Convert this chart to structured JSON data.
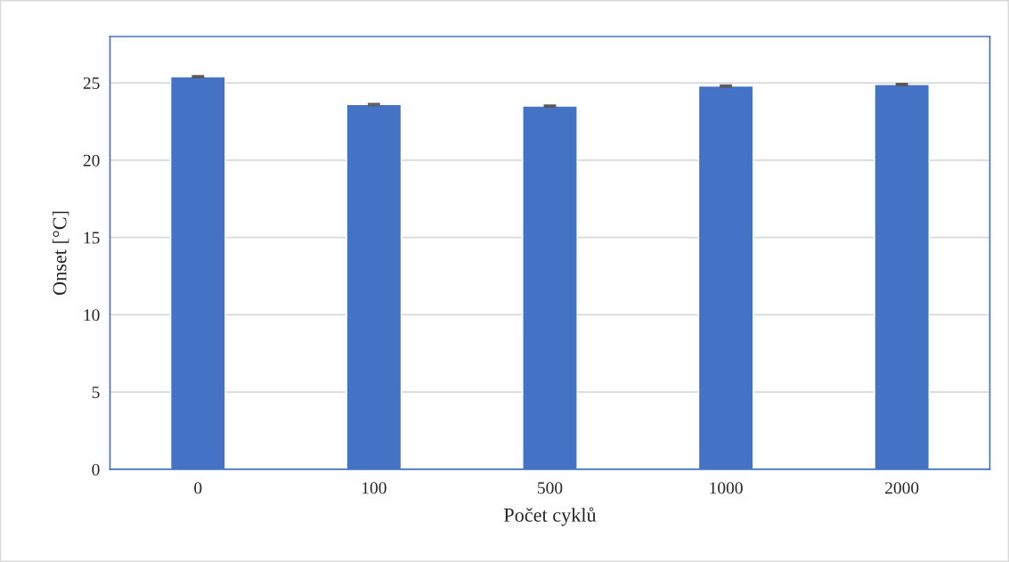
{
  "chart_data": {
    "type": "bar",
    "xlabel": "Počet cyklů",
    "ylabel": "Onset [°C]",
    "categories": [
      "0",
      "100",
      "500",
      "1000",
      "2000"
    ],
    "values": [
      25.4,
      23.6,
      23.5,
      24.8,
      24.9
    ],
    "errors": [
      0.05,
      0.05,
      0.05,
      0.05,
      0.05
    ],
    "color": "#4472c4",
    "ylim": [
      0,
      28
    ],
    "yticks": [
      0,
      5,
      10,
      15,
      20,
      25
    ],
    "grid": "y",
    "legend": false
  }
}
